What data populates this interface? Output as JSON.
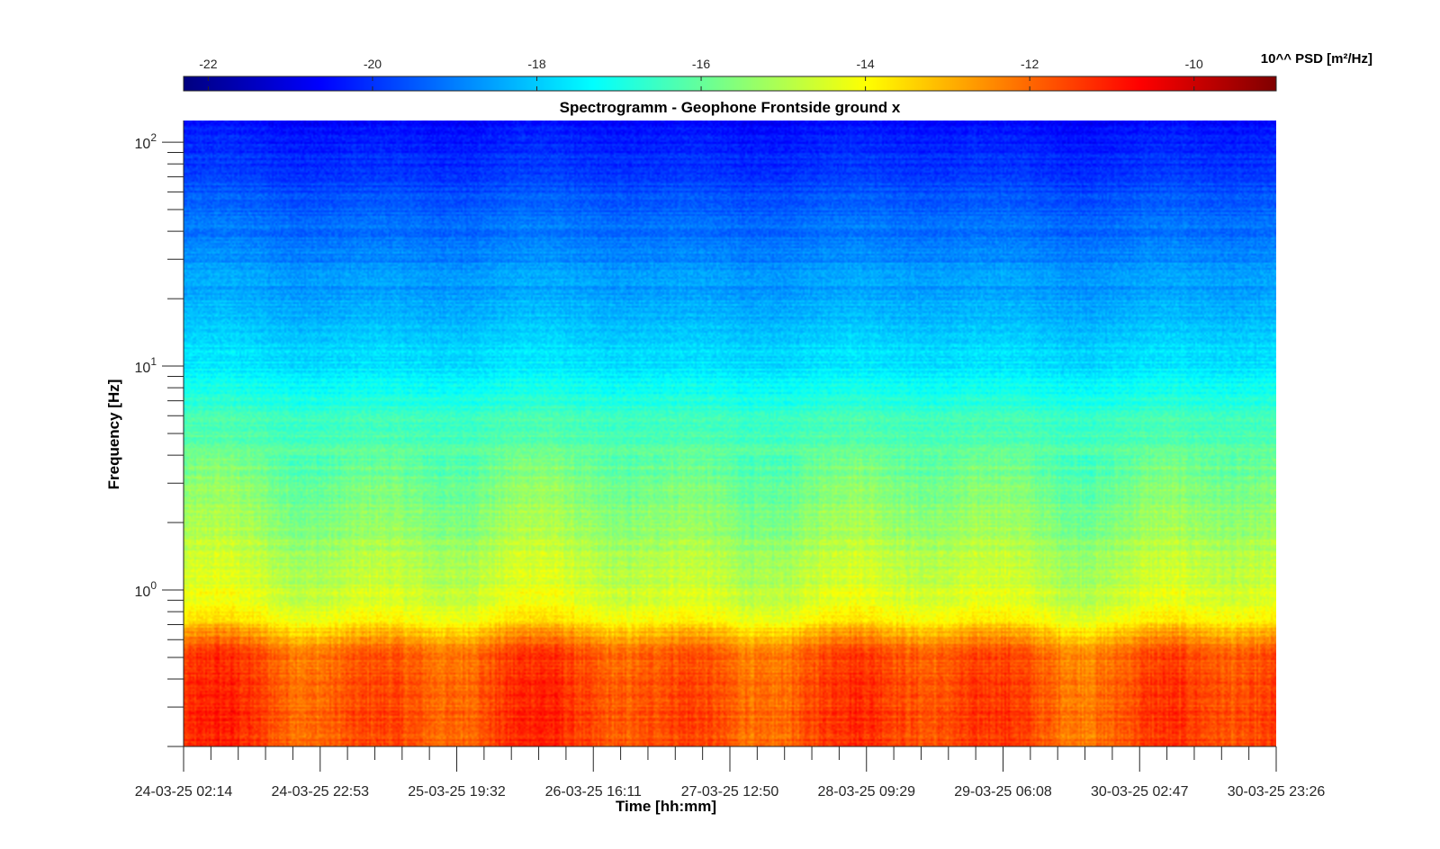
{
  "chart_data": {
    "type": "heatmap",
    "title": "Spectrogramm - Geophone Frontside ground x",
    "xlabel": "Time [hh:mm]",
    "ylabel": "Frequency [Hz]",
    "y_scale": "log",
    "ylim": [
      0.2,
      125
    ],
    "y_ticks": [
      {
        "value": 1,
        "base": "10",
        "exp": "0"
      },
      {
        "value": 10,
        "base": "10",
        "exp": "1"
      },
      {
        "value": 100,
        "base": "10",
        "exp": "2"
      }
    ],
    "x_tick_labels": [
      "24-03-25 02:14",
      "24-03-25 22:53",
      "25-03-25 19:32",
      "26-03-25 16:11",
      "27-03-25 12:50",
      "28-03-25 09:29",
      "29-03-25 06:08",
      "30-03-25 02:47",
      "30-03-25 23:26"
    ],
    "x_range": [
      "24-03-25 02:14",
      "30-03-25 23:26"
    ],
    "colorbar": {
      "label": "10^^ PSD [m²/Hz]",
      "placement": "top",
      "colormap": "jet",
      "clim": [
        -22.3,
        -9.0
      ],
      "ticks": [
        -22,
        -20,
        -18,
        -16,
        -14,
        -12,
        -10
      ],
      "tick_labels": [
        "-22",
        "-20",
        "-18",
        "-16",
        "-14",
        "-12",
        "-10"
      ]
    },
    "value_profile_by_frequency": [
      {
        "frequency_hz": 0.25,
        "log10_psd": -11.6
      },
      {
        "frequency_hz": 0.5,
        "log10_psd": -11.8
      },
      {
        "frequency_hz": 0.65,
        "log10_psd": -13.0
      },
      {
        "frequency_hz": 0.75,
        "log10_psd": -14.0
      },
      {
        "frequency_hz": 1.0,
        "log10_psd": -14.6
      },
      {
        "frequency_hz": 2.0,
        "log10_psd": -15.4
      },
      {
        "frequency_hz": 5.3,
        "log10_psd": -16.3
      },
      {
        "frequency_hz": 10,
        "log10_psd": -17.6
      },
      {
        "frequency_hz": 20,
        "log10_psd": -18.4
      },
      {
        "frequency_hz": 50,
        "log10_psd": -19.4
      },
      {
        "frequency_hz": 125,
        "log10_psd": -20.6
      }
    ],
    "grid": false
  }
}
